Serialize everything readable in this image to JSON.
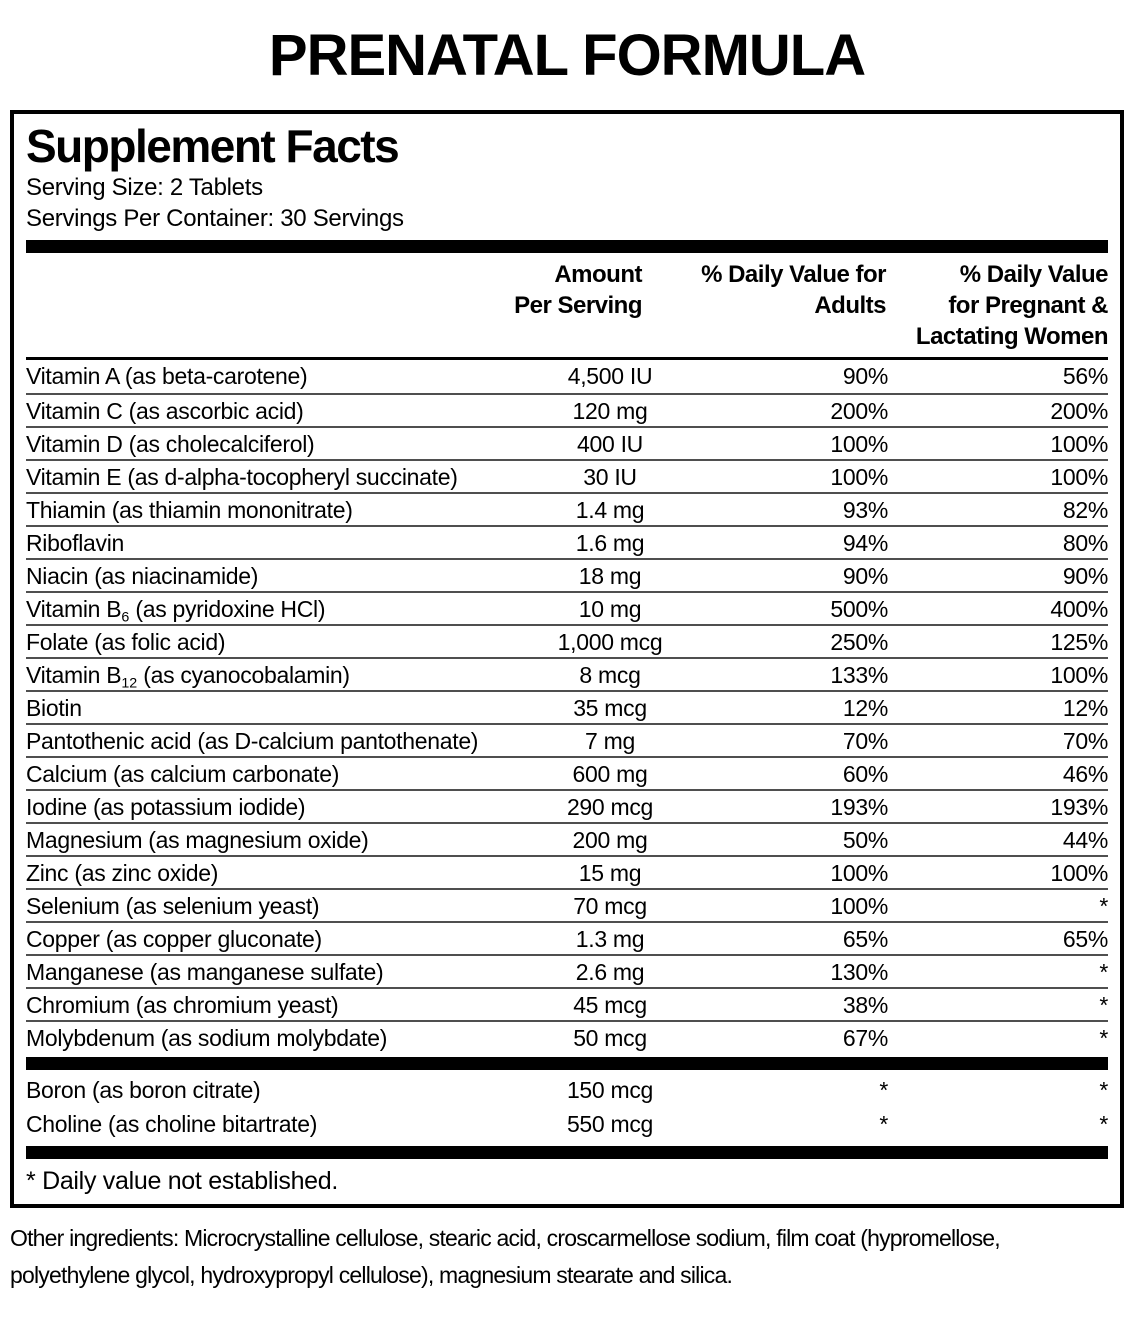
{
  "title": "PRENATAL FORMULA",
  "panel": {
    "heading": "Supplement Facts",
    "serving_size": "Serving Size: 2 Tablets",
    "servings_per_container": "Servings Per Container: 30 Servings",
    "columns": {
      "amount": [
        "Amount",
        "Per Serving"
      ],
      "adults": [
        "% Daily Value for",
        "Adults"
      ],
      "pregnant": [
        "% Daily Value",
        "for Pregnant &",
        "Lactating Women"
      ]
    },
    "rows": [
      {
        "name": "Vitamin A (as beta-carotene)",
        "amount": "4,500 IU",
        "adults": "90%",
        "pregnant": "56%"
      },
      {
        "name": "Vitamin C (as ascorbic acid)",
        "amount": "120 mg",
        "adults": "200%",
        "pregnant": "200%"
      },
      {
        "name": "Vitamin D (as cholecalciferol)",
        "amount": "400 IU",
        "adults": "100%",
        "pregnant": "100%"
      },
      {
        "name": "Vitamin E (as d-alpha-tocopheryl succinate)",
        "amount": "30 IU",
        "adults": "100%",
        "pregnant": "100%"
      },
      {
        "name": "Thiamin (as thiamin mononitrate)",
        "amount": "1.4 mg",
        "adults": "93%",
        "pregnant": "82%"
      },
      {
        "name": "Riboflavin",
        "amount": "1.6 mg",
        "adults": "94%",
        "pregnant": "80%"
      },
      {
        "name": "Niacin (as niacinamide)",
        "amount": "18 mg",
        "adults": "90%",
        "pregnant": "90%"
      },
      {
        "name": "Vitamin B~6~ (as pyridoxine HCl)",
        "amount": "10 mg",
        "adults": "500%",
        "pregnant": "400%"
      },
      {
        "name": "Folate (as folic acid)",
        "amount": "1,000 mcg",
        "adults": "250%",
        "pregnant": "125%"
      },
      {
        "name": "Vitamin B~12~ (as cyanocobalamin)",
        "amount": "8 mcg",
        "adults": "133%",
        "pregnant": "100%"
      },
      {
        "name": "Biotin",
        "amount": "35 mcg",
        "adults": "12%",
        "pregnant": "12%"
      },
      {
        "name": "Pantothenic acid (as D-calcium pantothenate)",
        "amount": "7 mg",
        "adults": "70%",
        "pregnant": "70%"
      },
      {
        "name": "Calcium (as calcium carbonate)",
        "amount": "600 mg",
        "adults": "60%",
        "pregnant": "46%"
      },
      {
        "name": "Iodine (as potassium iodide)",
        "amount": "290 mcg",
        "adults": "193%",
        "pregnant": "193%"
      },
      {
        "name": "Magnesium (as magnesium oxide)",
        "amount": "200 mg",
        "adults": "50%",
        "pregnant": "44%"
      },
      {
        "name": "Zinc (as zinc oxide)",
        "amount": "15 mg",
        "adults": "100%",
        "pregnant": "100%"
      },
      {
        "name": "Selenium (as selenium yeast)",
        "amount": "70 mcg",
        "adults": "100%",
        "pregnant": "*"
      },
      {
        "name": "Copper (as copper gluconate)",
        "amount": "1.3 mg",
        "adults": "65%",
        "pregnant": "65%"
      },
      {
        "name": "Manganese (as manganese sulfate)",
        "amount": "2.6 mg",
        "adults": "130%",
        "pregnant": "*"
      },
      {
        "name": "Chromium (as chromium yeast)",
        "amount": "45 mcg",
        "adults": "38%",
        "pregnant": "*"
      },
      {
        "name": "Molybdenum (as sodium molybdate)",
        "amount": "50 mcg",
        "adults": "67%",
        "pregnant": "*"
      }
    ],
    "rows_no_dv": [
      {
        "name": "Boron (as boron citrate)",
        "amount": "150 mcg",
        "adults": "*",
        "pregnant": "*"
      },
      {
        "name": "Choline (as choline bitartrate)",
        "amount": "550 mcg",
        "adults": "*",
        "pregnant": "*"
      }
    ],
    "footnote": "* Daily value not established."
  },
  "other_ingredients": "Other ingredients: Microcrystalline cellulose, stearic acid, croscarmellose sodium, film coat (hypromellose, polyethylene glycol, hydroxypropyl cellulose), magnesium stearate and silica."
}
